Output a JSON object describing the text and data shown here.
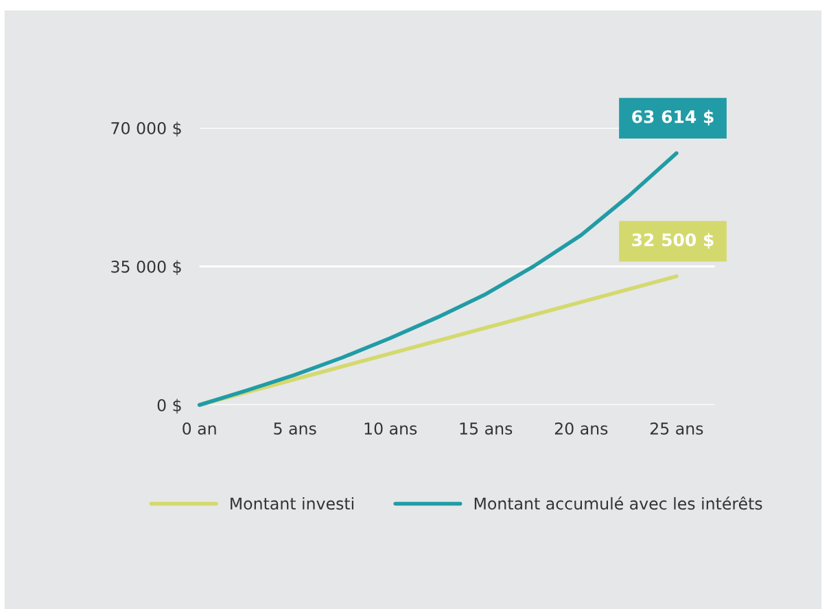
{
  "chart_data": {
    "type": "line",
    "x": [
      0,
      2.5,
      5,
      7.5,
      10,
      12.5,
      15,
      17.5,
      20,
      22.5,
      25
    ],
    "series": [
      {
        "name": "Montant investi",
        "color": "#d4d96e",
        "x": [
          0,
          25
        ],
        "values": [
          0,
          32500
        ]
      },
      {
        "name": "Montant accumulé avec les intérêts",
        "color": "#219ca6",
        "values": [
          0,
          3700,
          7600,
          12000,
          16900,
          22200,
          28000,
          35000,
          42900,
          52800,
          63614
        ]
      }
    ],
    "annotations": [
      {
        "text": "63 614 $",
        "x": 25,
        "y": 63614
      },
      {
        "text": "32 500 $",
        "x": 25,
        "y": 32500
      }
    ],
    "xlim": [
      0,
      27
    ],
    "ylim": [
      0,
      70000
    ],
    "xticks": [
      {
        "value": 0,
        "label": "0 an"
      },
      {
        "value": 5,
        "label": "5 ans"
      },
      {
        "value": 10,
        "label": "10 ans"
      },
      {
        "value": 15,
        "label": "15 ans"
      },
      {
        "value": 20,
        "label": "20 ans"
      },
      {
        "value": 25,
        "label": "25 ans"
      }
    ],
    "yticks": [
      {
        "value": 0,
        "label": "0 $"
      },
      {
        "value": 35000,
        "label": "35 000 $"
      },
      {
        "value": 70000,
        "label": "70 000 $"
      }
    ],
    "grid": "y",
    "legend": "bottom",
    "marker": "none",
    "line_style": "solid"
  }
}
